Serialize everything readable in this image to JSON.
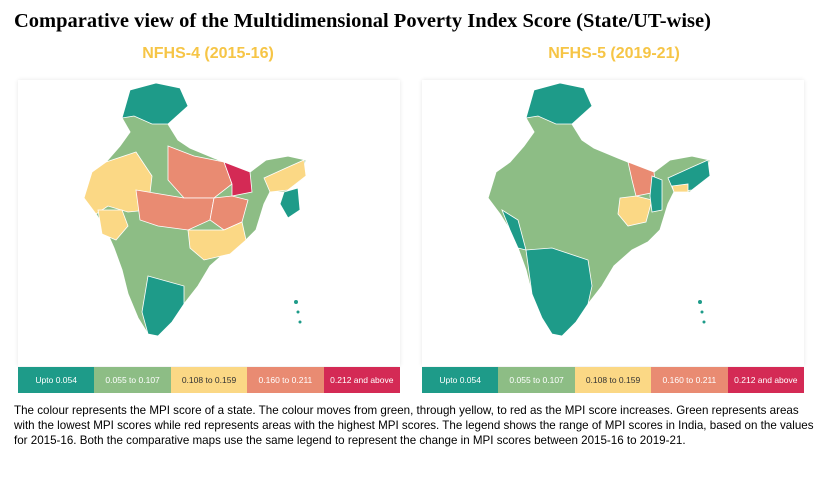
{
  "title": "Comparative view of the Multidimensional Poverty Index Score (State/UT-wise)",
  "panels": [
    {
      "title": "NFHS-4 (2015-16)"
    },
    {
      "title": "NFHS-5 (2019-21)"
    }
  ],
  "legend": [
    {
      "label": "Upto 0.054",
      "color": "#1e9b89",
      "text_color": "#ffffff"
    },
    {
      "label": "0.055 to 0.107",
      "color": "#8dbd85",
      "text_color": "#ffffff"
    },
    {
      "label": "0.108 to 0.159",
      "color": "#fbd885",
      "text_color": "#333333"
    },
    {
      "label": "0.160 to 0.211",
      "color": "#e98b72",
      "text_color": "#ffffff"
    },
    {
      "label": "0.212 and above",
      "color": "#d42a55",
      "text_color": "#ffffff"
    }
  ],
  "caption": "The colour represents the MPI score of a state. The colour moves from green, through yellow, to red as the MPI score increases. Green represents areas with the lowest MPI scores while red represents areas with the highest MPI scores. The legend shows the range of MPI scores in India, based on the values for 2015-16. Both the comparative maps use the same legend to represent the change in MPI scores between 2015-16 to 2019-21."
}
